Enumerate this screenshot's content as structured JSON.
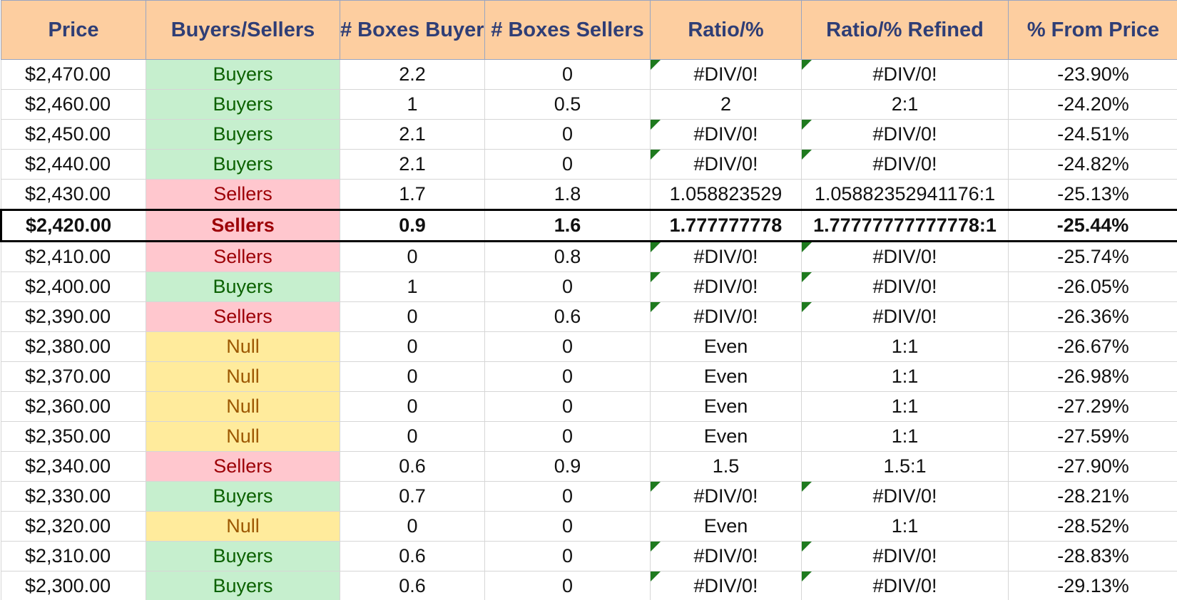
{
  "headers": {
    "price": "Price",
    "buyers_sellers": "Buyers/Sellers",
    "boxes_buyers": "# Boxes Buyers",
    "boxes_sellers": "# Boxes Sellers",
    "ratio": "Ratio/%",
    "ratio_refined": "Ratio/% Refined",
    "from_price": "% From Price"
  },
  "colors": {
    "header_bg": "#fdcea0",
    "header_text": "#2f3e76",
    "buyers_bg": "#c6efce",
    "buyers_text": "#0b6100",
    "sellers_bg": "#ffc7ce",
    "sellers_text": "#9c0006",
    "null_bg": "#ffeb9c",
    "null_text": "#9c5700",
    "error_flag": "#1e7a1e"
  },
  "highlighted_price": "$2,420.00",
  "rows": [
    {
      "price": "$2,470.00",
      "bs": "Buyers",
      "bb": "2.2",
      "bsl": "0",
      "ratio": "#DIV/0!",
      "refined": "#DIV/0!",
      "pct": "-23.90%"
    },
    {
      "price": "$2,460.00",
      "bs": "Buyers",
      "bb": "1",
      "bsl": "0.5",
      "ratio": "2",
      "refined": "2:1",
      "pct": "-24.20%"
    },
    {
      "price": "$2,450.00",
      "bs": "Buyers",
      "bb": "2.1",
      "bsl": "0",
      "ratio": "#DIV/0!",
      "refined": "#DIV/0!",
      "pct": "-24.51%"
    },
    {
      "price": "$2,440.00",
      "bs": "Buyers",
      "bb": "2.1",
      "bsl": "0",
      "ratio": "#DIV/0!",
      "refined": "#DIV/0!",
      "pct": "-24.82%"
    },
    {
      "price": "$2,430.00",
      "bs": "Sellers",
      "bb": "1.7",
      "bsl": "1.8",
      "ratio": "1.058823529",
      "refined": "1.05882352941176:1",
      "pct": "-25.13%"
    },
    {
      "price": "$2,420.00",
      "bs": "Sellers",
      "bb": "0.9",
      "bsl": "1.6",
      "ratio": "1.777777778",
      "refined": "1.77777777777778:1",
      "pct": "-25.44%"
    },
    {
      "price": "$2,410.00",
      "bs": "Sellers",
      "bb": "0",
      "bsl": "0.8",
      "ratio": "#DIV/0!",
      "refined": "#DIV/0!",
      "pct": "-25.74%"
    },
    {
      "price": "$2,400.00",
      "bs": "Buyers",
      "bb": "1",
      "bsl": "0",
      "ratio": "#DIV/0!",
      "refined": "#DIV/0!",
      "pct": "-26.05%"
    },
    {
      "price": "$2,390.00",
      "bs": "Sellers",
      "bb": "0",
      "bsl": "0.6",
      "ratio": "#DIV/0!",
      "refined": "#DIV/0!",
      "pct": "-26.36%"
    },
    {
      "price": "$2,380.00",
      "bs": "Null",
      "bb": "0",
      "bsl": "0",
      "ratio": "Even",
      "refined": "1:1",
      "pct": "-26.67%"
    },
    {
      "price": "$2,370.00",
      "bs": "Null",
      "bb": "0",
      "bsl": "0",
      "ratio": "Even",
      "refined": "1:1",
      "pct": "-26.98%"
    },
    {
      "price": "$2,360.00",
      "bs": "Null",
      "bb": "0",
      "bsl": "0",
      "ratio": "Even",
      "refined": "1:1",
      "pct": "-27.29%"
    },
    {
      "price": "$2,350.00",
      "bs": "Null",
      "bb": "0",
      "bsl": "0",
      "ratio": "Even",
      "refined": "1:1",
      "pct": "-27.59%"
    },
    {
      "price": "$2,340.00",
      "bs": "Sellers",
      "bb": "0.6",
      "bsl": "0.9",
      "ratio": "1.5",
      "refined": "1.5:1",
      "pct": "-27.90%"
    },
    {
      "price": "$2,330.00",
      "bs": "Buyers",
      "bb": "0.7",
      "bsl": "0",
      "ratio": "#DIV/0!",
      "refined": "#DIV/0!",
      "pct": "-28.21%"
    },
    {
      "price": "$2,320.00",
      "bs": "Null",
      "bb": "0",
      "bsl": "0",
      "ratio": "Even",
      "refined": "1:1",
      "pct": "-28.52%"
    },
    {
      "price": "$2,310.00",
      "bs": "Buyers",
      "bb": "0.6",
      "bsl": "0",
      "ratio": "#DIV/0!",
      "refined": "#DIV/0!",
      "pct": "-28.83%"
    },
    {
      "price": "$2,300.00",
      "bs": "Buyers",
      "bb": "0.6",
      "bsl": "0",
      "ratio": "#DIV/0!",
      "refined": "#DIV/0!",
      "pct": "-29.13%"
    }
  ]
}
